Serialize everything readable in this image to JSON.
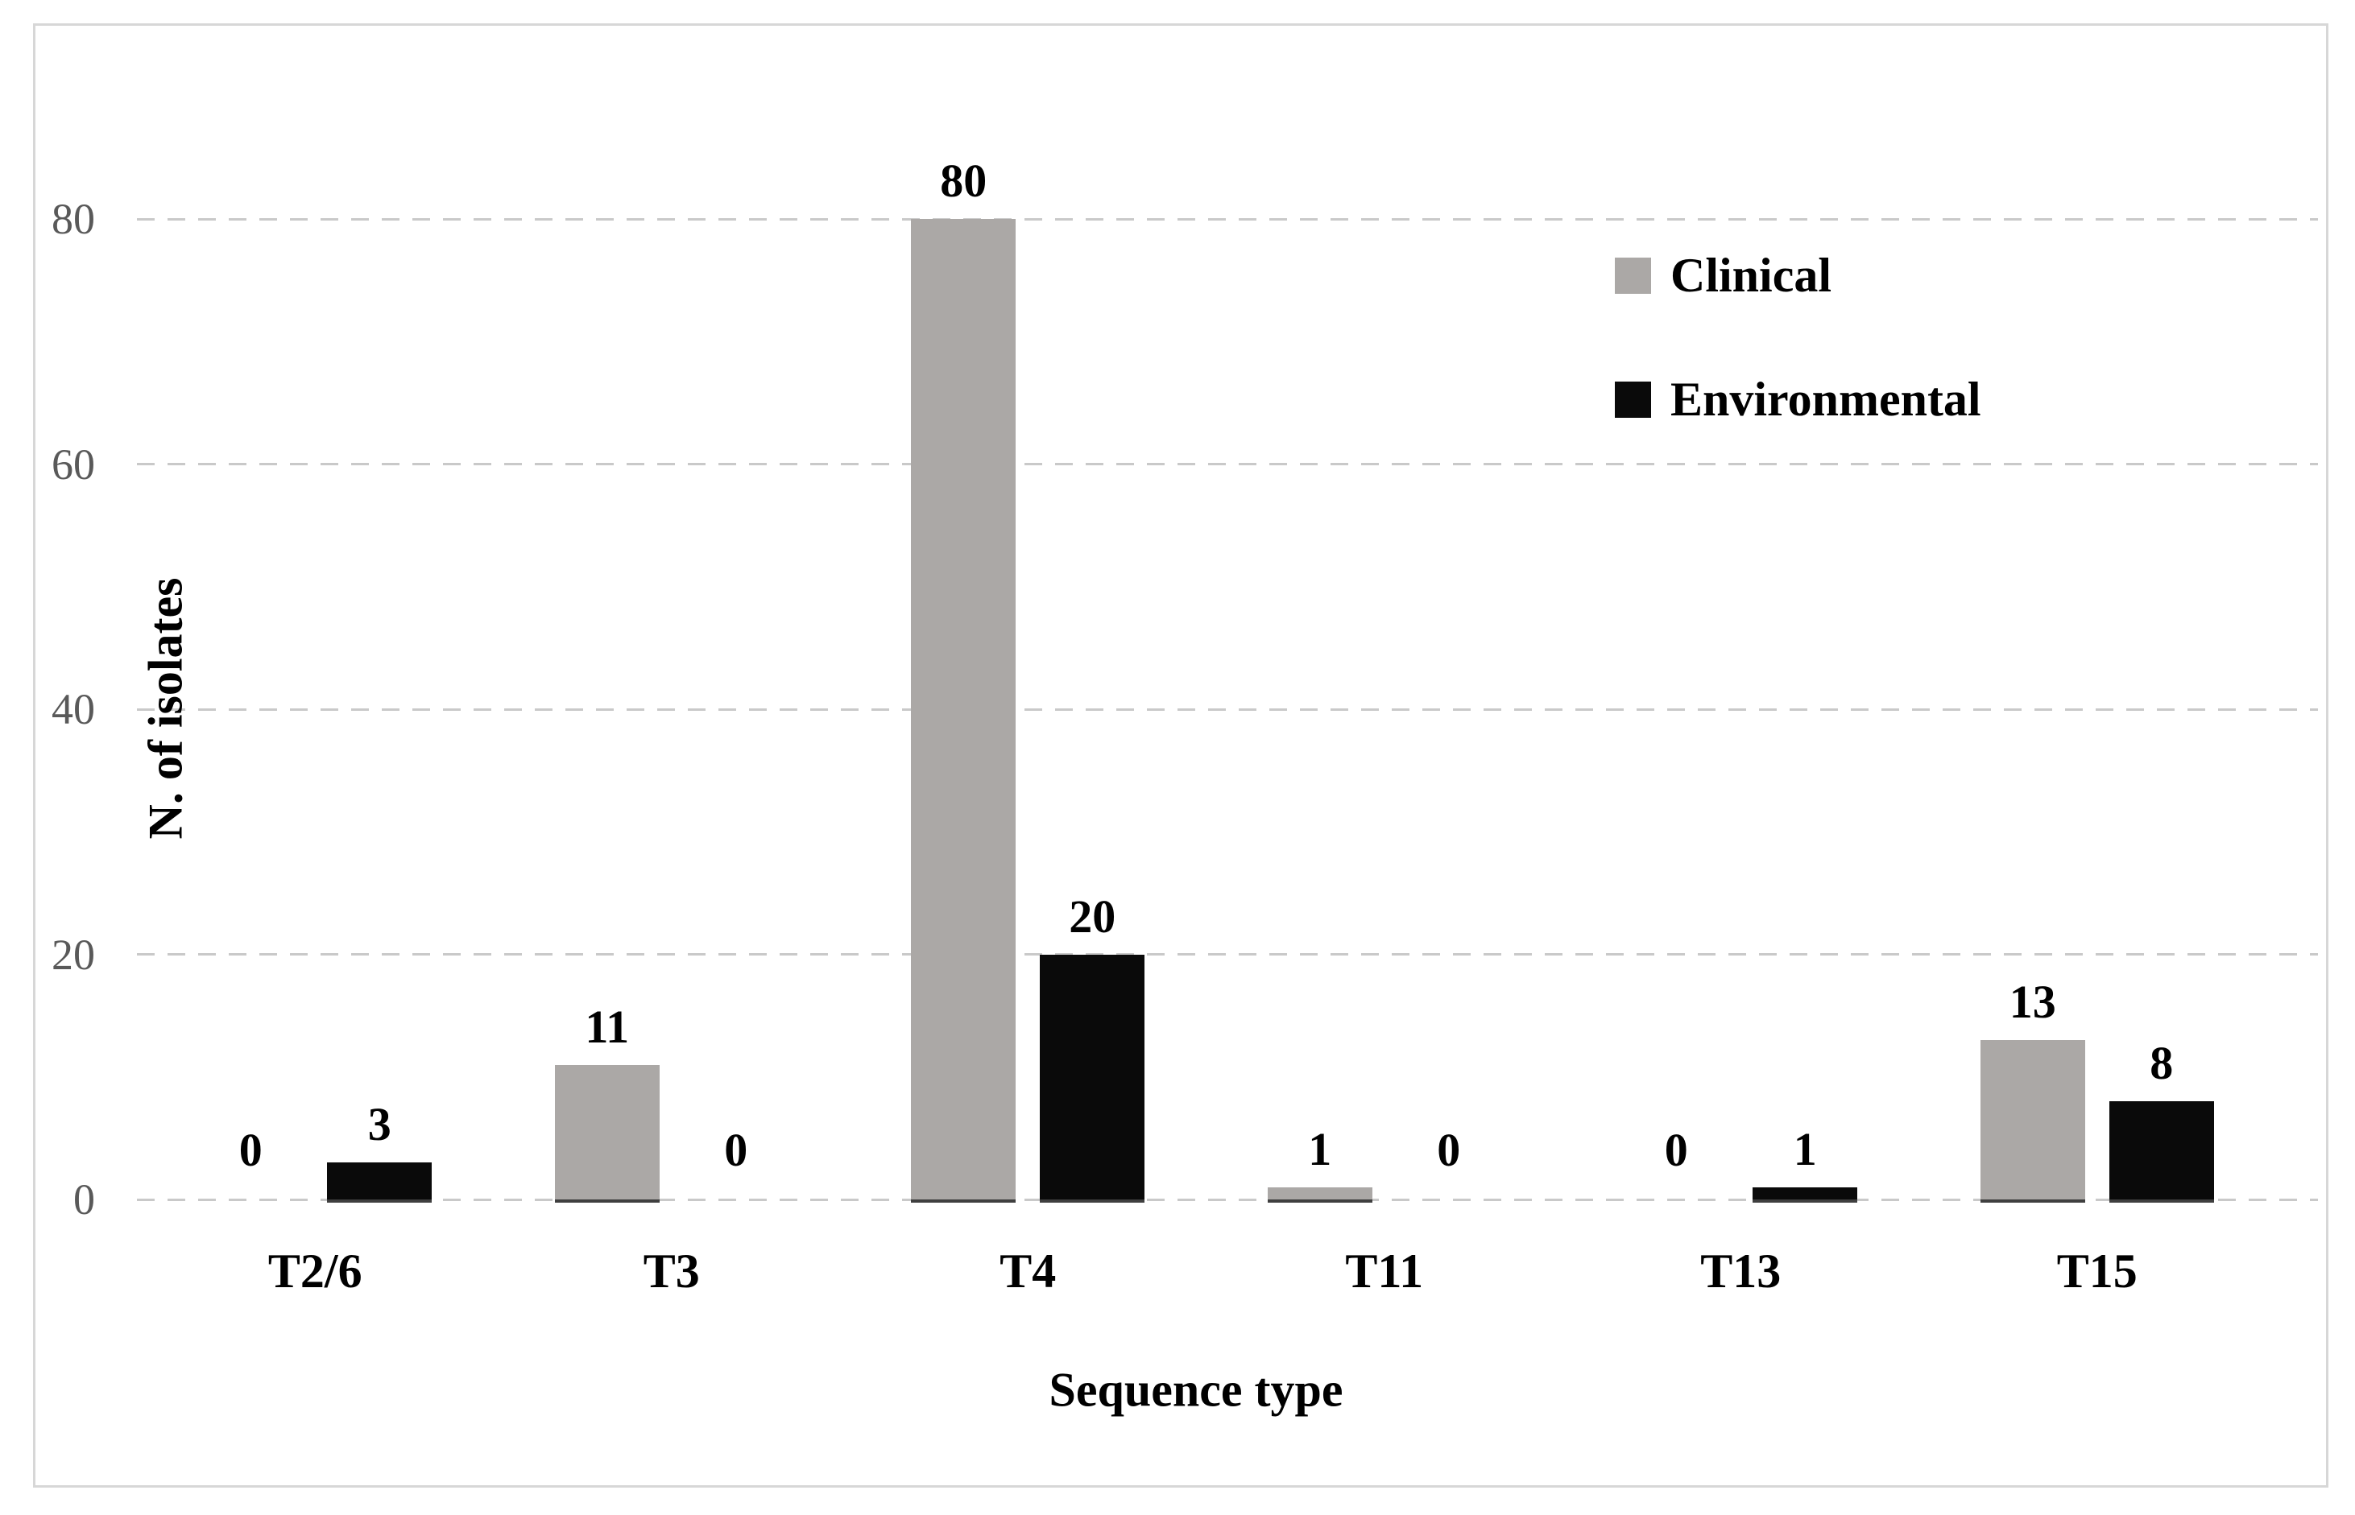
{
  "chart_data": {
    "type": "bar",
    "categories": [
      "T2/6",
      "T3",
      "T4",
      "T11",
      "T13",
      "T15"
    ],
    "series": [
      {
        "name": "Clinical",
        "color": "#aba8a6",
        "values": [
          0,
          11,
          80,
          1,
          0,
          13
        ]
      },
      {
        "name": "Environmental",
        "color": "#0a0a0a",
        "values": [
          3,
          0,
          20,
          0,
          1,
          8
        ]
      }
    ],
    "title": "",
    "xlabel": "Sequence type",
    "ylabel": "N. of isolates",
    "yticks": [
      0,
      20,
      40,
      60,
      80
    ],
    "ylim": [
      0,
      80
    ],
    "grid": "horizontal dashed",
    "gridline_color": "#c9c9c9",
    "tick_label_color": "#595959",
    "legend_position": "upper right",
    "bar_value_labels": true
  }
}
